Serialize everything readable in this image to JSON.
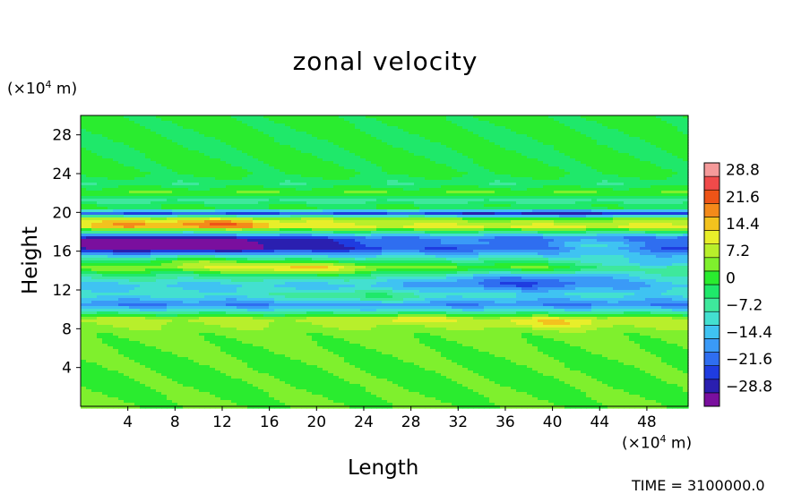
{
  "chart_data": {
    "type": "heatmap",
    "title": "zonal velocity",
    "xlabel": "Length",
    "ylabel": "Height",
    "x_unit": {
      "prefix": "(×10",
      "exp": "4",
      "suffix": " m)"
    },
    "y_unit": {
      "prefix": "(×10",
      "exp": "4",
      "suffix": " m)"
    },
    "xlim": [
      0,
      51.5
    ],
    "ylim": [
      0,
      30
    ],
    "x_ticks": [
      "4",
      "8",
      "12",
      "16",
      "20",
      "24",
      "28",
      "32",
      "36",
      "40",
      "44",
      "48"
    ],
    "y_ticks": [
      "4",
      "8",
      "12",
      "16",
      "20",
      "24",
      "28"
    ],
    "colorbar": {
      "labels": [
        "28.8",
        "21.6",
        "14.4",
        "7.2",
        "0",
        "−7.2",
        "−14.4",
        "−21.6",
        "−28.8"
      ],
      "range": [
        -32.4,
        32.4
      ],
      "levels": 18
    },
    "time_label": "TIME = 3100000.0",
    "profile": [
      {
        "y": 0,
        "u": 4
      },
      {
        "y": 2,
        "u": 3
      },
      {
        "y": 4,
        "u": 3
      },
      {
        "y": 6,
        "u": 4
      },
      {
        "y": 7.5,
        "u": 5
      },
      {
        "y": 9,
        "u": 9
      },
      {
        "y": 9.8,
        "u": -8
      },
      {
        "y": 10.5,
        "u": -18
      },
      {
        "y": 11.5,
        "u": -9
      },
      {
        "y": 12.5,
        "u": -12
      },
      {
        "y": 13.5,
        "u": -4
      },
      {
        "y": 14.3,
        "u": 6
      },
      {
        "y": 15.3,
        "u": -8
      },
      {
        "y": 16.3,
        "u": -26
      },
      {
        "y": 17.3,
        "u": -24
      },
      {
        "y": 18.5,
        "u": 12
      },
      {
        "y": 19.3,
        "u": 8
      },
      {
        "y": 19.9,
        "u": -22
      },
      {
        "y": 20.5,
        "u": 2
      },
      {
        "y": 21.2,
        "u": -6
      },
      {
        "y": 22,
        "u": 4
      },
      {
        "y": 23,
        "u": -3
      },
      {
        "y": 24,
        "u": 1
      },
      {
        "y": 27,
        "u": 0
      },
      {
        "y": 30,
        "u": 1
      }
    ],
    "anomalies": [
      {
        "x": 8,
        "y": 16.8,
        "rx": 9,
        "ry": 0.9,
        "du": -10
      },
      {
        "x": 4,
        "y": 18.8,
        "rx": 5,
        "ry": 0.5,
        "du": 6
      },
      {
        "x": 12,
        "y": 18.8,
        "rx": 5,
        "ry": 0.5,
        "du": 10
      },
      {
        "x": 30,
        "y": 16.8,
        "rx": 6,
        "ry": 0.8,
        "du": 8
      },
      {
        "x": 44,
        "y": 16.6,
        "rx": 6,
        "ry": 0.8,
        "du": 14
      },
      {
        "x": 40,
        "y": 19.7,
        "rx": 8,
        "ry": 0.7,
        "du": -6
      },
      {
        "x": 38,
        "y": 13.0,
        "rx": 9,
        "ry": 1.0,
        "du": -12
      },
      {
        "x": 48,
        "y": 14.5,
        "rx": 5,
        "ry": 0.8,
        "du": -14
      },
      {
        "x": 18,
        "y": 14.2,
        "rx": 6,
        "ry": 0.7,
        "du": 10
      },
      {
        "x": 28,
        "y": 9.0,
        "rx": 3,
        "ry": 0.5,
        "du": 6
      },
      {
        "x": 40,
        "y": 8.6,
        "rx": 5,
        "ry": 0.6,
        "du": 6
      },
      {
        "x": 10,
        "y": 15.0,
        "rx": 5,
        "ry": 0.6,
        "du": 8
      },
      {
        "x": 24,
        "y": 11.2,
        "rx": 6,
        "ry": 0.7,
        "du": 7
      }
    ]
  }
}
